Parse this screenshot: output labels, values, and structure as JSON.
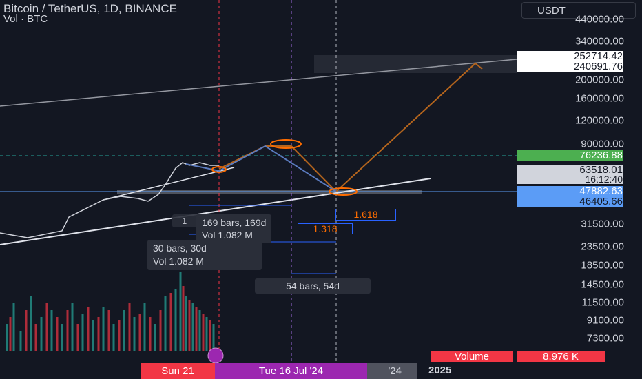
{
  "header": {
    "title": "Bitcoin / TetherUS, 1D, BINANCE",
    "indicator": "Vol · BTC",
    "currency": "USDT"
  },
  "price_axis": [
    "440000.00",
    "340000.00",
    "200000.00",
    "160000.00",
    "120000.00",
    "90000.00",
    "31500.00",
    "23500.00",
    "18500.00",
    "14500.00",
    "11500.00",
    "9100.00",
    "7300.00"
  ],
  "badges": {
    "target_high": "252714.42",
    "target_low": "240691.76",
    "green_line": "76236.88",
    "last_price": "63518.01",
    "countdown": "16:12:40",
    "blue_high": "47882.63",
    "blue_low": "46405.66"
  },
  "annotations": {
    "fib_a": "1.618",
    "fib_b": "1.318",
    "marker": "1",
    "range_a": "169 bars, 169d",
    "range_a_vol": "Vol 1.082 M",
    "range_b": "30 bars, 30d",
    "range_b_vol": "Vol 1.082 M",
    "range_c": "54 bars, 54d"
  },
  "footer": {
    "volume_label": "Volume",
    "volume_value": "8.976 K",
    "date_a": "Sun 21",
    "date_b": "Tue 16 Jul '24",
    "date_c": "'24",
    "year": "2025"
  }
}
